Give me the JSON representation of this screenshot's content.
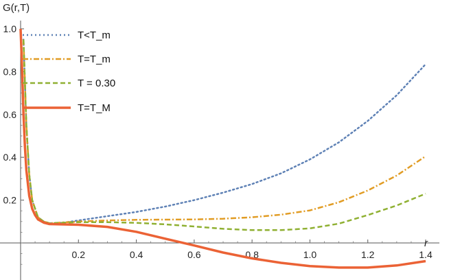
{
  "chart_data": {
    "type": "line",
    "ylabel": "G(r,T)",
    "xlabel": "r",
    "xlim": [
      0,
      1.4
    ],
    "ylim": [
      -0.12,
      1.05
    ],
    "xticks": [
      0.2,
      0.4,
      0.6,
      0.8,
      1.0,
      1.2,
      1.4
    ],
    "xtick_labels": [
      "0.2",
      "0.4",
      "0.6",
      "0.8",
      "1.0",
      "1.2",
      "1.4"
    ],
    "yticks": [
      0.2,
      0.4,
      0.6,
      0.8,
      1.0
    ],
    "ytick_labels": [
      "0.2",
      "0.4",
      "0.6",
      "0.8",
      "1.0"
    ],
    "legend_position": "top-left",
    "series": [
      {
        "name": "T<T_m",
        "color": "#5e81b5",
        "dash": "dotted",
        "x": [
          0.01,
          0.02,
          0.03,
          0.04,
          0.06,
          0.08,
          0.1,
          0.15,
          0.2,
          0.3,
          0.4,
          0.5,
          0.6,
          0.7,
          0.8,
          0.9,
          1.0,
          1.1,
          1.2,
          1.3,
          1.4
        ],
        "y": [
          0.95,
          0.55,
          0.32,
          0.2,
          0.12,
          0.1,
          0.092,
          0.095,
          0.105,
          0.125,
          0.145,
          0.17,
          0.2,
          0.235,
          0.275,
          0.325,
          0.39,
          0.47,
          0.57,
          0.69,
          0.835
        ]
      },
      {
        "name": "T=T_m",
        "color": "#e19c24",
        "dash": "dashdot",
        "x": [
          0.01,
          0.02,
          0.03,
          0.04,
          0.06,
          0.08,
          0.1,
          0.2,
          0.3,
          0.4,
          0.5,
          0.6,
          0.7,
          0.8,
          0.9,
          1.0,
          1.1,
          1.2,
          1.3,
          1.4
        ],
        "y": [
          0.95,
          0.55,
          0.32,
          0.2,
          0.12,
          0.1,
          0.092,
          0.1,
          0.105,
          0.108,
          0.109,
          0.11,
          0.113,
          0.12,
          0.132,
          0.152,
          0.19,
          0.245,
          0.315,
          0.405
        ]
      },
      {
        "name": "T = 0.30",
        "color": "#8fb032",
        "dash": "dashed",
        "x": [
          0.01,
          0.02,
          0.03,
          0.04,
          0.06,
          0.08,
          0.1,
          0.2,
          0.3,
          0.4,
          0.5,
          0.6,
          0.7,
          0.8,
          0.9,
          1.0,
          1.1,
          1.2,
          1.3,
          1.4
        ],
        "y": [
          0.95,
          0.55,
          0.32,
          0.2,
          0.12,
          0.1,
          0.092,
          0.097,
          0.097,
          0.094,
          0.087,
          0.077,
          0.066,
          0.06,
          0.06,
          0.068,
          0.09,
          0.13,
          0.175,
          0.23
        ]
      },
      {
        "name": "T=T_M",
        "color": "#eb6235",
        "dash": "solid",
        "x": [
          0.0,
          0.005,
          0.01,
          0.015,
          0.02,
          0.03,
          0.04,
          0.05,
          0.06,
          0.08,
          0.1,
          0.2,
          0.3,
          0.4,
          0.5,
          0.6,
          0.7,
          0.8,
          0.9,
          1.0,
          1.1,
          1.2,
          1.3,
          1.4
        ],
        "y": [
          1.0,
          0.82,
          0.6,
          0.45,
          0.34,
          0.22,
          0.16,
          0.13,
          0.11,
          0.095,
          0.088,
          0.085,
          0.075,
          0.052,
          0.02,
          -0.012,
          -0.045,
          -0.072,
          -0.093,
          -0.108,
          -0.115,
          -0.115,
          -0.105,
          -0.085
        ]
      }
    ]
  }
}
